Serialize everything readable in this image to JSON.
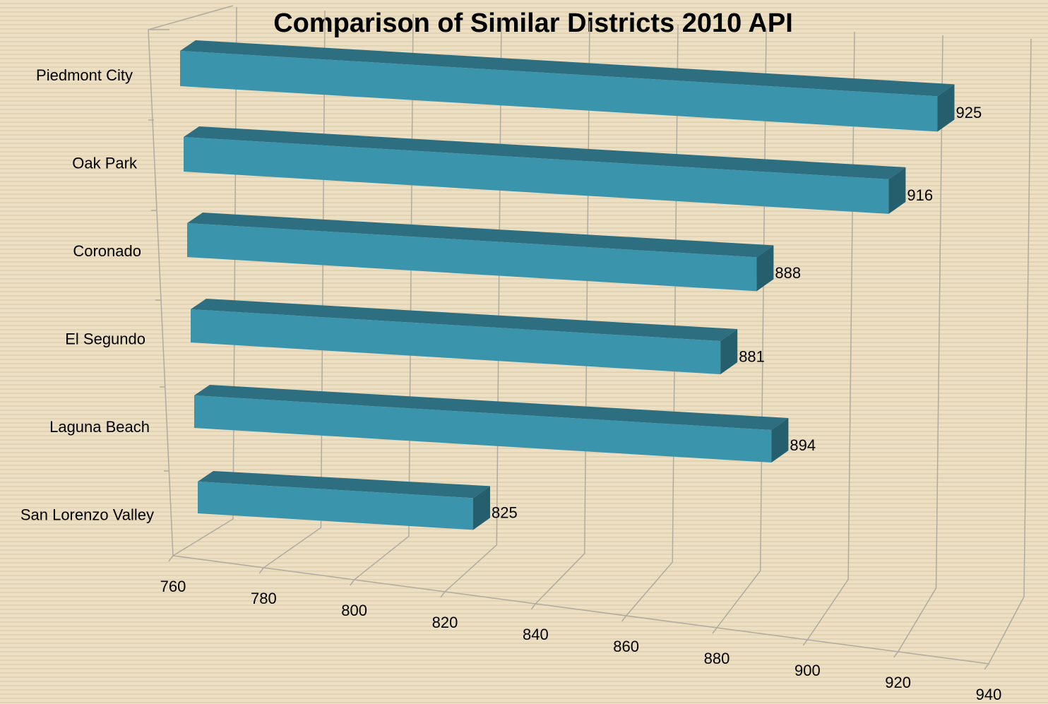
{
  "chart_data": {
    "type": "bar",
    "orientation": "horizontal",
    "three_d": true,
    "title": "Comparison of Similar Districts 2010 API",
    "categories": [
      "Piedmont City",
      "Oak Park",
      "Coronado",
      "El Segundo",
      "Laguna Beach",
      "San Lorenzo Valley"
    ],
    "values": [
      925,
      916,
      888,
      881,
      894,
      825
    ],
    "color": "#3a95ac",
    "xlim": [
      760,
      940
    ],
    "xticks": [
      760,
      780,
      800,
      820,
      840,
      860,
      880,
      900,
      920,
      940
    ],
    "grid": true,
    "data_labels": true
  }
}
